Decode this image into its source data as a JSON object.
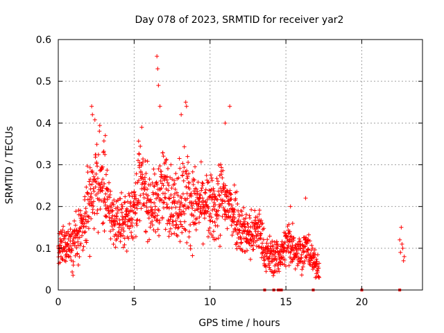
{
  "chart_data": {
    "type": "scatter",
    "title": "Day 078 of 2023, SRMTID for receiver yar2",
    "xlabel": "GPS time / hours",
    "ylabel": "SRMTID / TECUs",
    "xlim": [
      0,
      24
    ],
    "ylim": [
      0,
      0.6
    ],
    "xticks": [
      0,
      5,
      10,
      15,
      20
    ],
    "yticks": [
      0,
      0.1,
      0.2,
      0.3,
      0.4,
      0.5,
      0.6
    ],
    "xtick_labels": [
      "0",
      "5",
      "10",
      "15",
      "20"
    ],
    "ytick_labels": [
      "0",
      "0.1",
      "0.2",
      "0.3",
      "0.4",
      "0.5",
      "0.6"
    ],
    "grid": true,
    "marker": "+",
    "color": "#ff0000",
    "envelope": {
      "description": "approximate per-time median and spread of the scattered SRMTID points",
      "x": [
        0.0,
        0.5,
        1.0,
        1.5,
        2.0,
        2.3,
        2.6,
        3.0,
        3.3,
        3.6,
        4.0,
        4.5,
        5.0,
        5.3,
        5.6,
        6.0,
        6.4,
        6.8,
        7.2,
        7.6,
        8.0,
        8.4,
        8.8,
        9.2,
        9.6,
        10.0,
        10.4,
        10.8,
        11.2,
        11.6,
        12.0,
        12.4,
        12.8,
        13.2,
        13.6,
        14.0,
        14.4,
        14.8,
        15.2,
        15.6,
        16.0,
        16.4,
        16.8,
        17.2
      ],
      "median": [
        0.09,
        0.11,
        0.12,
        0.13,
        0.2,
        0.25,
        0.26,
        0.25,
        0.2,
        0.17,
        0.16,
        0.17,
        0.2,
        0.26,
        0.24,
        0.21,
        0.2,
        0.24,
        0.24,
        0.2,
        0.22,
        0.23,
        0.21,
        0.2,
        0.21,
        0.19,
        0.2,
        0.22,
        0.2,
        0.19,
        0.15,
        0.14,
        0.13,
        0.15,
        0.09,
        0.08,
        0.08,
        0.09,
        0.12,
        0.1,
        0.09,
        0.1,
        0.07,
        0.05
      ],
      "spread": [
        0.03,
        0.03,
        0.04,
        0.04,
        0.06,
        0.07,
        0.07,
        0.07,
        0.05,
        0.04,
        0.04,
        0.04,
        0.05,
        0.07,
        0.06,
        0.05,
        0.05,
        0.06,
        0.06,
        0.05,
        0.07,
        0.08,
        0.06,
        0.05,
        0.05,
        0.05,
        0.06,
        0.07,
        0.05,
        0.05,
        0.04,
        0.04,
        0.04,
        0.04,
        0.03,
        0.03,
        0.03,
        0.03,
        0.04,
        0.03,
        0.03,
        0.03,
        0.02,
        0.02
      ]
    },
    "extra_points": {
      "x": [
        2.2,
        2.25,
        3.1,
        5.5,
        6.5,
        6.55,
        6.6,
        6.7,
        8.1,
        8.4,
        8.45,
        11.3,
        11.0,
        15.3,
        16.3,
        22.5,
        22.6,
        22.7,
        22.8,
        22.55,
        22.65,
        22.75
      ],
      "y": [
        0.44,
        0.42,
        0.37,
        0.39,
        0.56,
        0.53,
        0.49,
        0.44,
        0.42,
        0.45,
        0.44,
        0.44,
        0.4,
        0.2,
        0.22,
        0.12,
        0.15,
        0.1,
        0.08,
        0.09,
        0.11,
        0.07
      ]
    },
    "zero_markers_x": [
      13.6,
      14.2,
      14.5,
      14.6,
      14.7,
      16.8,
      20.0,
      22.5
    ]
  }
}
